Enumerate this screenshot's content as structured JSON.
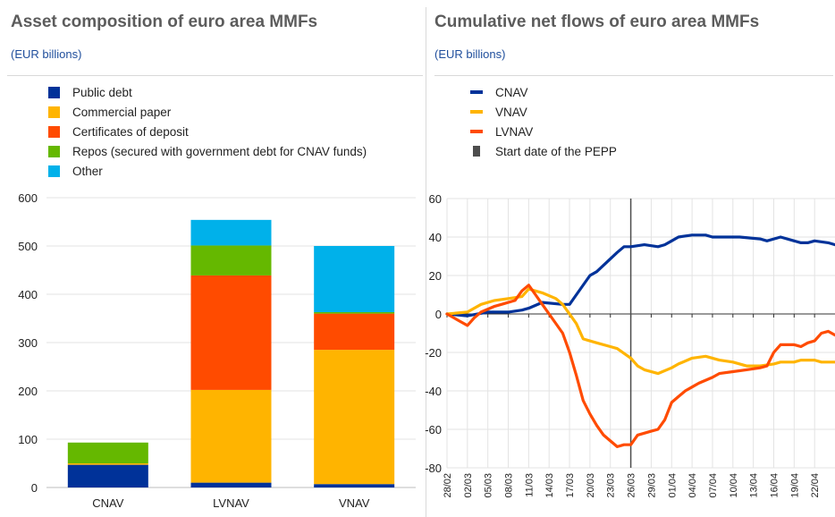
{
  "left": {
    "title": "Asset composition of euro area MMFs",
    "subtitle": "(EUR billions)",
    "legend": [
      {
        "label": "Public debt",
        "color": "#003299"
      },
      {
        "label": "Commercial paper",
        "color": "#ffb400"
      },
      {
        "label": "Certificates of deposit",
        "color": "#ff4b00"
      },
      {
        "label": "Repos (secured with government debt for CNAV funds)",
        "color": "#65b800"
      },
      {
        "label": "Other",
        "color": "#00b1ea"
      }
    ]
  },
  "right": {
    "title": "Cumulative net flows of euro area MMFs",
    "subtitle": "(EUR billions)",
    "legend": [
      {
        "label": "CNAV",
        "color": "#003299",
        "kind": "line"
      },
      {
        "label": "VNAV",
        "color": "#ffb400",
        "kind": "line"
      },
      {
        "label": "LVNAV",
        "color": "#ff4b00",
        "kind": "line"
      },
      {
        "label": "Start date of the PEPP",
        "color": "#4d4d4d",
        "kind": "vline"
      }
    ]
  },
  "chart_data": [
    {
      "type": "bar",
      "stacked": true,
      "title": "Asset composition of euro area MMFs",
      "ylabel": "(EUR billions)",
      "categories": [
        "CNAV",
        "LVNAV",
        "VNAV"
      ],
      "ylim": [
        0,
        600
      ],
      "yticks": [
        0,
        100,
        200,
        300,
        400,
        500,
        600
      ],
      "grid": true,
      "legend_position": "top",
      "series": [
        {
          "name": "Public debt",
          "color": "#003299",
          "values": [
            47,
            10,
            7
          ]
        },
        {
          "name": "Commercial paper",
          "color": "#ffb400",
          "values": [
            3,
            192,
            278
          ]
        },
        {
          "name": "Certificates of deposit",
          "color": "#ff4b00",
          "values": [
            0,
            237,
            75
          ]
        },
        {
          "name": "Repos (secured with government debt for CNAV funds)",
          "color": "#65b800",
          "values": [
            43,
            62,
            3
          ]
        },
        {
          "name": "Other",
          "color": "#00b1ea",
          "values": [
            0,
            53,
            137
          ]
        }
      ]
    },
    {
      "type": "line",
      "title": "Cumulative net flows of euro area MMFs",
      "ylabel": "(EUR billions)",
      "ylim": [
        -80,
        60
      ],
      "yticks": [
        -80,
        -60,
        -40,
        -20,
        0,
        20,
        40,
        60
      ],
      "xlim": [
        "28/02",
        "25/04"
      ],
      "xticks": [
        "28/02",
        "02/03",
        "05/03",
        "08/03",
        "11/03",
        "14/03",
        "17/03",
        "20/03",
        "23/03",
        "26/03",
        "29/03",
        "01/04",
        "04/04",
        "07/04",
        "10/04",
        "13/04",
        "16/04",
        "19/04",
        "22/04"
      ],
      "grid": true,
      "legend_position": "top",
      "vline": {
        "label": "Start date of the PEPP",
        "x": "26/03"
      },
      "series": [
        {
          "name": "CNAV",
          "color": "#003299",
          "points": [
            [
              "28/02",
              0
            ],
            [
              "02/03",
              -1
            ],
            [
              "05/03",
              1
            ],
            [
              "08/03",
              1
            ],
            [
              "10/03",
              2
            ],
            [
              "11/03",
              3
            ],
            [
              "13/03",
              6
            ],
            [
              "16/03",
              5
            ],
            [
              "17/03",
              5
            ],
            [
              "18/03",
              10
            ],
            [
              "20/03",
              20
            ],
            [
              "21/03",
              22
            ],
            [
              "24/03",
              32
            ],
            [
              "25/03",
              35
            ],
            [
              "26/03",
              35
            ],
            [
              "28/03",
              36
            ],
            [
              "30/03",
              35
            ],
            [
              "31/03",
              36
            ],
            [
              "01/04",
              38
            ],
            [
              "02/04",
              40
            ],
            [
              "04/04",
              41
            ],
            [
              "06/04",
              41
            ],
            [
              "07/04",
              40
            ],
            [
              "08/04",
              40
            ],
            [
              "11/04",
              40
            ],
            [
              "14/04",
              39
            ],
            [
              "15/04",
              38
            ],
            [
              "17/04",
              40
            ],
            [
              "19/04",
              38
            ],
            [
              "20/04",
              37
            ],
            [
              "21/04",
              37
            ],
            [
              "22/04",
              38
            ],
            [
              "24/04",
              37
            ],
            [
              "25/04",
              36
            ]
          ]
        },
        {
          "name": "VNAV",
          "color": "#ffb400",
          "points": [
            [
              "28/02",
              0
            ],
            [
              "02/03",
              1
            ],
            [
              "04/03",
              5
            ],
            [
              "06/03",
              7
            ],
            [
              "08/03",
              8
            ],
            [
              "10/03",
              9
            ],
            [
              "11/03",
              13
            ],
            [
              "13/03",
              11
            ],
            [
              "15/03",
              8
            ],
            [
              "16/03",
              5
            ],
            [
              "18/03",
              -5
            ],
            [
              "19/03",
              -13
            ],
            [
              "21/03",
              -15
            ],
            [
              "23/03",
              -17
            ],
            [
              "24/03",
              -18
            ],
            [
              "26/03",
              -23
            ],
            [
              "27/03",
              -27
            ],
            [
              "28/03",
              -29
            ],
            [
              "30/03",
              -31
            ],
            [
              "01/04",
              -28
            ],
            [
              "02/04",
              -26
            ],
            [
              "04/04",
              -23
            ],
            [
              "06/04",
              -22
            ],
            [
              "08/04",
              -24
            ],
            [
              "10/04",
              -25
            ],
            [
              "12/04",
              -27
            ],
            [
              "14/04",
              -27
            ],
            [
              "16/04",
              -26
            ],
            [
              "17/04",
              -25
            ],
            [
              "19/04",
              -25
            ],
            [
              "20/04",
              -24
            ],
            [
              "22/04",
              -24
            ],
            [
              "23/04",
              -25
            ],
            [
              "25/04",
              -25
            ]
          ]
        },
        {
          "name": "LVNAV",
          "color": "#ff4b00",
          "points": [
            [
              "28/02",
              0
            ],
            [
              "01/03",
              -4
            ],
            [
              "02/03",
              -6
            ],
            [
              "03/03",
              -2
            ],
            [
              "04/03",
              1
            ],
            [
              "06/03",
              4
            ],
            [
              "07/03",
              5
            ],
            [
              "09/03",
              7
            ],
            [
              "10/03",
              12
            ],
            [
              "11/03",
              15
            ],
            [
              "12/03",
              10
            ],
            [
              "13/03",
              5
            ],
            [
              "14/03",
              0
            ],
            [
              "16/03",
              -10
            ],
            [
              "17/03",
              -20
            ],
            [
              "18/03",
              -32
            ],
            [
              "19/03",
              -45
            ],
            [
              "20/03",
              -52
            ],
            [
              "21/03",
              -58
            ],
            [
              "22/03",
              -63
            ],
            [
              "23/03",
              -66
            ],
            [
              "24/03",
              -69
            ],
            [
              "25/03",
              -68
            ],
            [
              "26/03",
              -68
            ],
            [
              "27/03",
              -63
            ],
            [
              "29/03",
              -61
            ],
            [
              "30/03",
              -60
            ],
            [
              "31/03",
              -55
            ],
            [
              "01/04",
              -46
            ],
            [
              "02/04",
              -43
            ],
            [
              "03/04",
              -40
            ],
            [
              "04/04",
              -38
            ],
            [
              "05/04",
              -36
            ],
            [
              "07/04",
              -33
            ],
            [
              "08/04",
              -31
            ],
            [
              "10/04",
              -30
            ],
            [
              "12/04",
              -29
            ],
            [
              "14/04",
              -28
            ],
            [
              "15/04",
              -27
            ],
            [
              "16/04",
              -20
            ],
            [
              "17/04",
              -16
            ],
            [
              "19/04",
              -16
            ],
            [
              "20/04",
              -17
            ],
            [
              "21/04",
              -15
            ],
            [
              "22/04",
              -14
            ],
            [
              "23/04",
              -10
            ],
            [
              "24/04",
              -9
            ],
            [
              "25/04",
              -11
            ]
          ]
        }
      ]
    }
  ]
}
